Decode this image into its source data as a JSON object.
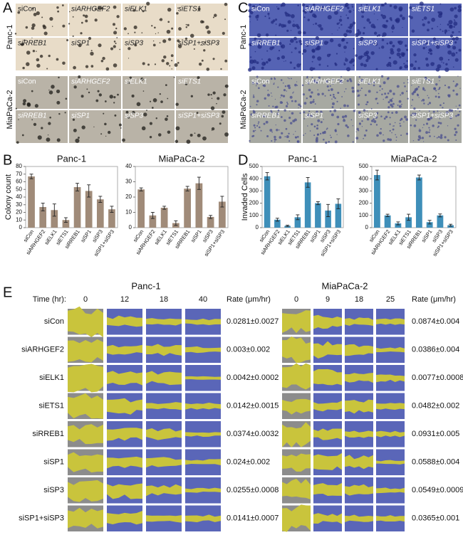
{
  "panel_labels": [
    "A",
    "B",
    "C",
    "D",
    "E"
  ],
  "colony_images": {
    "cell_lines": [
      "Panc-1",
      "MiaPaCa-2"
    ],
    "labels": [
      "siCon",
      "siARHGEF2",
      "siELK1",
      "siETS1",
      "siRREB1",
      "siSP1",
      "siSP3",
      "siSP1+siSP3"
    ]
  },
  "invasion_images": {
    "cell_lines": [
      "Panc-1",
      "MiaPaCa-2"
    ],
    "labels": [
      "siCon",
      "siARHGEF2",
      "siELK1",
      "siETS1",
      "siRREB1",
      "siSP1",
      "siSP3",
      "siSP1+siSP3"
    ]
  },
  "chart_data": [
    {
      "type": "bar",
      "title": "Panc-1",
      "ylabel": "Colony count",
      "categories": [
        "siCon",
        "siARHGEF2",
        "siELK1",
        "siETS1",
        "siRREB1",
        "siSP1",
        "siSP3",
        "siSP1+siSP3"
      ],
      "values": [
        67,
        27,
        23,
        10,
        53,
        48,
        37,
        24
      ],
      "errors": [
        3,
        5,
        8,
        3,
        5,
        8,
        4,
        4
      ],
      "color": "#a08b79",
      "ylim": [
        0,
        80
      ],
      "yticks": [
        0,
        10,
        20,
        30,
        40,
        50,
        60,
        70,
        80
      ]
    },
    {
      "type": "bar",
      "title": "MiaPaCa-2",
      "categories": [
        "siCon",
        "siARHGEF2",
        "siELK1",
        "siETS1",
        "siRREB1",
        "siSP1",
        "siSP3",
        "siSP1+siSP3"
      ],
      "values": [
        25,
        8,
        13,
        3,
        25.5,
        29,
        7,
        17
      ],
      "errors": [
        1,
        2,
        1,
        1.5,
        1.5,
        4,
        1,
        3.5
      ],
      "color": "#a08b79",
      "ylim": [
        0,
        40
      ],
      "yticks": [
        0,
        10,
        20,
        30,
        40
      ]
    },
    {
      "type": "bar",
      "title": "Panc-1",
      "ylabel": "Invaded Cells",
      "categories": [
        "siCon",
        "siARHGEF2",
        "siELK1",
        "siETS1",
        "siRREB1",
        "siSP1",
        "siSP3",
        "siSP1+siSP3"
      ],
      "values": [
        420,
        65,
        15,
        85,
        370,
        200,
        140,
        195
      ],
      "errors": [
        30,
        12,
        5,
        20,
        40,
        12,
        50,
        40
      ],
      "color": "#3f8fb9",
      "ylim": [
        0,
        500
      ],
      "yticks": [
        0,
        100,
        200,
        300,
        400,
        500
      ]
    },
    {
      "type": "bar",
      "title": "MiaPaCa-2",
      "categories": [
        "siCon",
        "siARHGEF2",
        "siELK1",
        "siETS1",
        "siRREB1",
        "siSP1",
        "siSP3",
        "siSP1+siSP3"
      ],
      "values": [
        430,
        100,
        35,
        85,
        410,
        45,
        100,
        20
      ],
      "errors": [
        40,
        10,
        12,
        25,
        20,
        15,
        12,
        8
      ],
      "color": "#3f8fb9",
      "ylim": [
        0,
        500
      ],
      "yticks": [
        0,
        100,
        200,
        300,
        400,
        500
      ]
    }
  ],
  "wound": {
    "time_label": "Time (hr):",
    "rate_header": "Rate (μm/hr)",
    "panels": [
      {
        "title": "Panc-1",
        "times": [
          "0",
          "12",
          "18",
          "40"
        ],
        "rows": [
          {
            "label": "siCon",
            "rate": "0.0281±0.0027"
          },
          {
            "label": "siARHGEF2",
            "rate": "0.003±0.002"
          },
          {
            "label": "siELK1",
            "rate": "0.0042±0.0002"
          },
          {
            "label": "siETS1",
            "rate": "0.0142±0.0015"
          },
          {
            "label": "siRREB1",
            "rate": "0.0374±0.0032"
          },
          {
            "label": "siSP1",
            "rate": "0.024±0.002"
          },
          {
            "label": "siSP3",
            "rate": "0.0255±0.0008"
          },
          {
            "label": "siSP1+siSP3",
            "rate": "0.0141±0.0007"
          }
        ]
      },
      {
        "title": "MiaPaCa-2",
        "times": [
          "0",
          "9",
          "18",
          "25"
        ],
        "rows": [
          {
            "rate": "0.0874±0.004"
          },
          {
            "rate": "0.0386±0.004"
          },
          {
            "rate": "0.0077±0.0008"
          },
          {
            "rate": "0.0482±0.002"
          },
          {
            "rate": "0.0931±0.005"
          },
          {
            "rate": "0.0588±0.004"
          },
          {
            "rate": "0.0549±0.0009"
          },
          {
            "rate": "0.0365±0.001"
          }
        ]
      }
    ]
  }
}
